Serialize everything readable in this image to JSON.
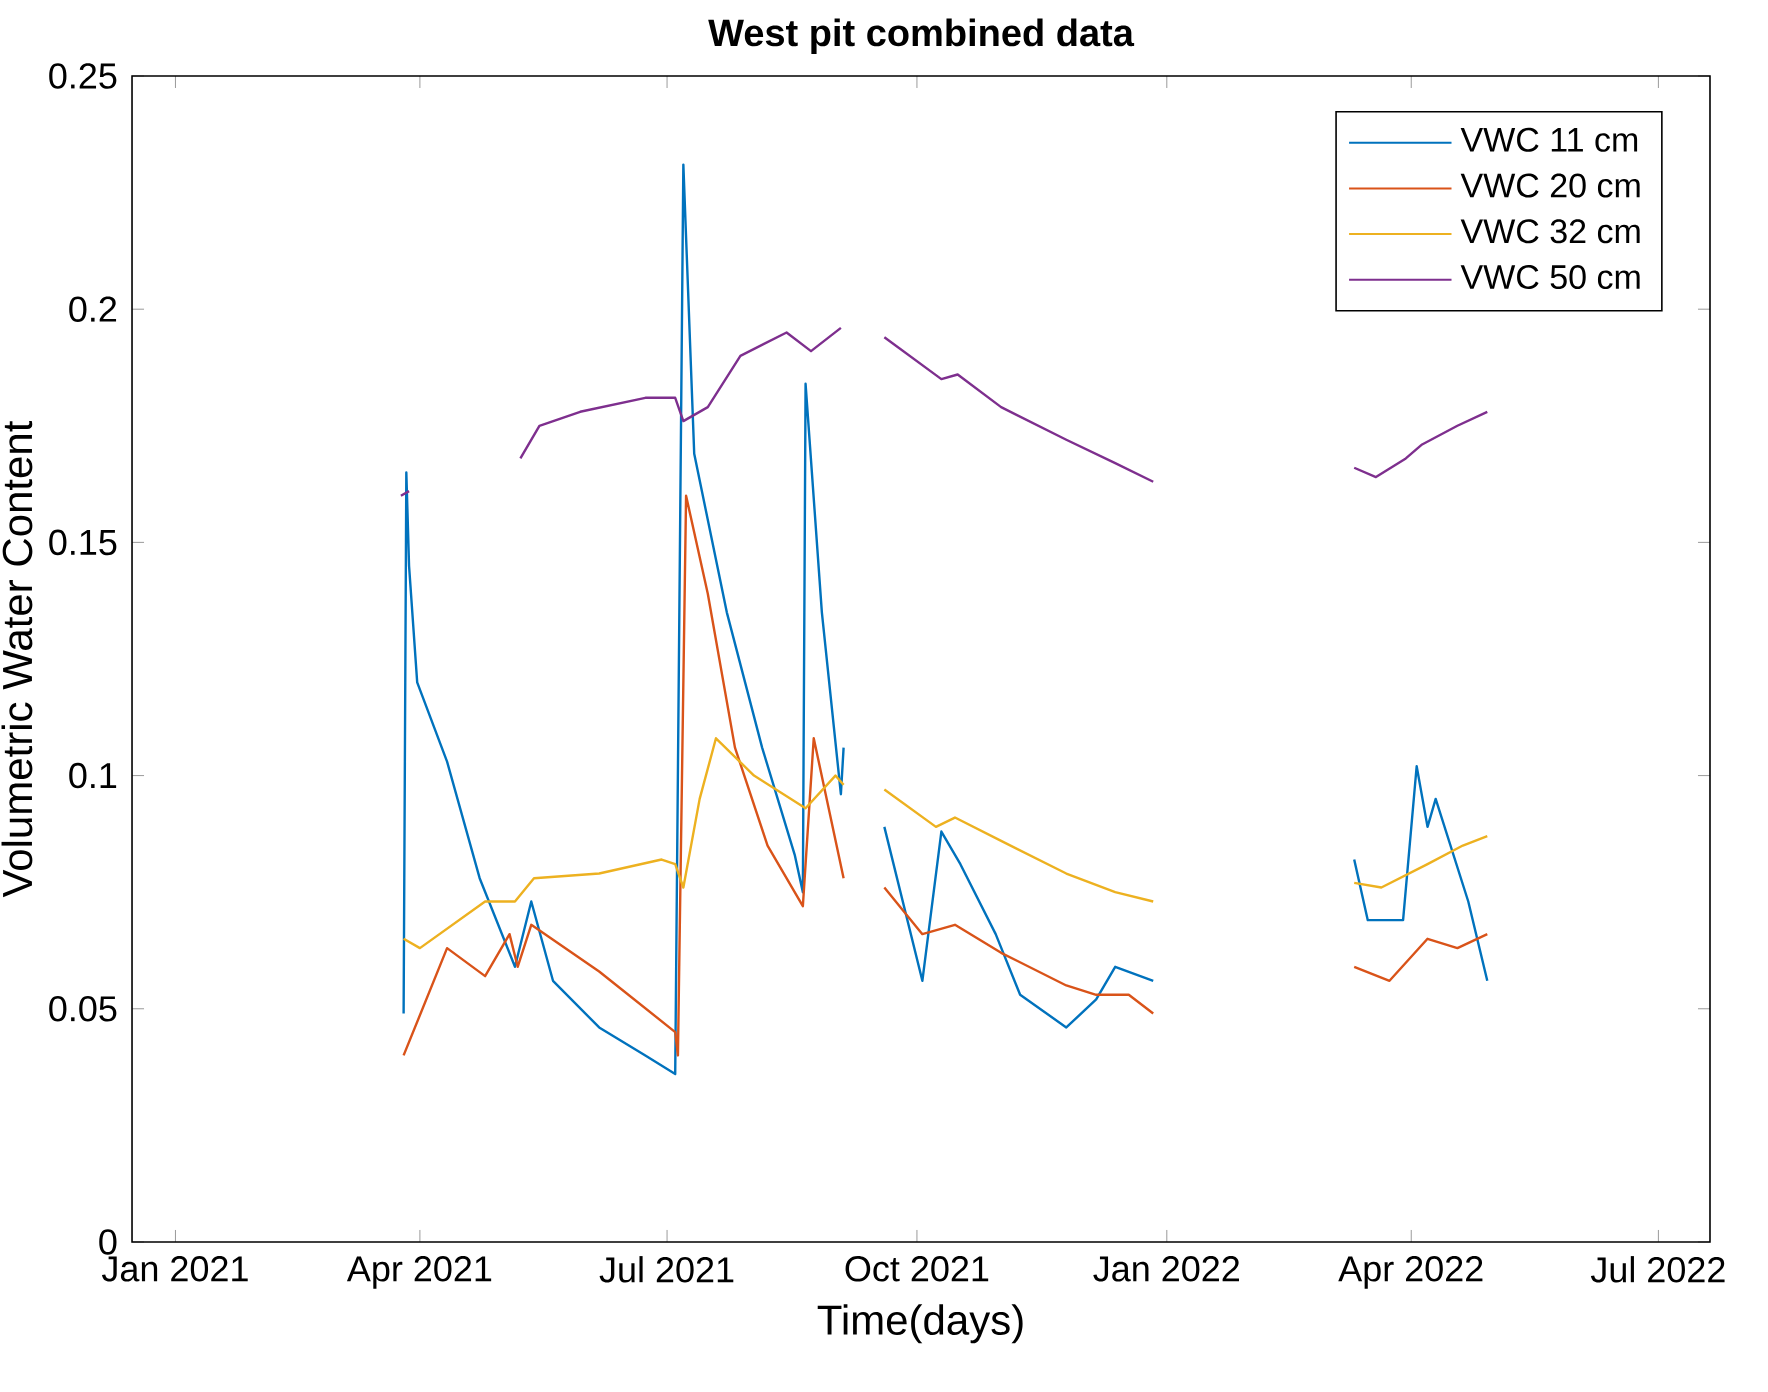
{
  "chart_data": {
    "type": "line",
    "title": "West pit combined data",
    "xlabel": "Time(days)",
    "ylabel": "Volumetric Water Content",
    "xlim": [
      "2020-12-16",
      "2022-07-20"
    ],
    "xticks": [
      {
        "value": "2021-01-01",
        "label": "Jan 2021"
      },
      {
        "value": "2021-04-01",
        "label": "Apr 2021"
      },
      {
        "value": "2021-07-01",
        "label": "Jul 2021"
      },
      {
        "value": "2021-10-01",
        "label": "Oct 2021"
      },
      {
        "value": "2022-01-01",
        "label": "Jan 2022"
      },
      {
        "value": "2022-04-01",
        "label": "Apr 2022"
      },
      {
        "value": "2022-07-01",
        "label": "Jul 2022"
      }
    ],
    "ylim": [
      0,
      0.25
    ],
    "yticks": [
      0,
      0.05,
      0.1,
      0.15,
      0.2,
      0.25
    ],
    "legend": "top right",
    "grid": false,
    "marker": "none",
    "line_style": "solid",
    "series": [
      {
        "name": "VWC 11 cm",
        "color": "#0072bd",
        "x": [
          "2021-03-26",
          "2021-03-27",
          "2021-03-28",
          "2021-03-31",
          "2021-04-11",
          "2021-04-23",
          "2021-05-06",
          "2021-05-12",
          "2021-05-20",
          "2021-06-06",
          "2021-06-23",
          "2021-07-04",
          "2021-07-07",
          "2021-07-11",
          "2021-07-23",
          "2021-08-05",
          "2021-08-17",
          "2021-08-20",
          "2021-08-21",
          "2021-08-27",
          "2021-09-03",
          "2021-09-04",
          "2021-09-12",
          "2021-09-19",
          "2021-10-03",
          "2021-10-10",
          "2021-10-17",
          "2021-10-30",
          "2021-11-08",
          "2021-11-25",
          "2021-12-06",
          "2021-12-13",
          "2021-12-27",
          "2022-02-01",
          "2022-03-11",
          "2022-03-16",
          "2022-03-29",
          "2022-04-03",
          "2022-04-07",
          "2022-04-10",
          "2022-04-22",
          "2022-04-29"
        ],
        "values": [
          0.049,
          0.165,
          0.145,
          0.12,
          0.103,
          0.078,
          0.059,
          0.073,
          0.056,
          0.046,
          0.04,
          0.036,
          0.231,
          0.169,
          0.135,
          0.106,
          0.083,
          0.075,
          0.184,
          0.135,
          0.096,
          0.106,
          null,
          0.089,
          0.056,
          0.088,
          0.081,
          0.066,
          0.053,
          0.046,
          0.052,
          0.059,
          0.056,
          null,
          0.082,
          0.069,
          0.069,
          0.102,
          0.089,
          0.095,
          0.073,
          0.056
        ]
      },
      {
        "name": "VWC 20 cm",
        "color": "#d95319",
        "x": [
          "2021-03-26",
          "2021-04-11",
          "2021-04-25",
          "2021-05-04",
          "2021-05-07",
          "2021-05-12",
          "2021-06-06",
          "2021-07-04",
          "2021-07-05",
          "2021-07-08",
          "2021-07-16",
          "2021-07-26",
          "2021-08-07",
          "2021-08-20",
          "2021-08-24",
          "2021-09-04",
          "2021-09-12",
          "2021-09-19",
          "2021-10-03",
          "2021-10-15",
          "2021-11-01",
          "2021-11-25",
          "2021-12-06",
          "2021-12-18",
          "2021-12-27",
          "2022-02-01",
          "2022-03-11",
          "2022-03-24",
          "2022-04-07",
          "2022-04-18",
          "2022-04-29"
        ],
        "values": [
          0.04,
          0.063,
          0.057,
          0.066,
          0.059,
          0.068,
          0.058,
          0.045,
          0.04,
          0.16,
          0.139,
          0.106,
          0.085,
          0.072,
          0.108,
          0.078,
          null,
          0.076,
          0.066,
          0.068,
          0.062,
          0.055,
          0.053,
          0.053,
          0.049,
          null,
          0.059,
          0.056,
          0.065,
          0.063,
          0.066
        ]
      },
      {
        "name": "VWC 32 cm",
        "color": "#edb120",
        "x": [
          "2021-03-26",
          "2021-04-01",
          "2021-04-25",
          "2021-05-06",
          "2021-05-13",
          "2021-06-06",
          "2021-06-29",
          "2021-07-04",
          "2021-07-07",
          "2021-07-13",
          "2021-07-19",
          "2021-08-02",
          "2021-08-21",
          "2021-09-01",
          "2021-09-04",
          "2021-09-12",
          "2021-09-19",
          "2021-10-08",
          "2021-10-15",
          "2021-11-01",
          "2021-11-25",
          "2021-12-13",
          "2021-12-27",
          "2022-02-01",
          "2022-03-11",
          "2022-03-21",
          "2022-04-07",
          "2022-04-20",
          "2022-04-29"
        ],
        "values": [
          0.065,
          0.063,
          0.073,
          0.073,
          0.078,
          0.079,
          0.082,
          0.081,
          0.076,
          0.095,
          0.108,
          0.1,
          0.093,
          0.1,
          0.098,
          null,
          0.097,
          0.089,
          0.091,
          0.086,
          0.079,
          0.075,
          0.073,
          null,
          0.077,
          0.076,
          0.081,
          0.085,
          0.087
        ]
      },
      {
        "name": "VWC 50 cm",
        "color": "#7e2f8e",
        "x": [
          "2021-03-25",
          "2021-03-28",
          "2021-04-20",
          "2021-05-08",
          "2021-05-15",
          "2021-05-30",
          "2021-06-23",
          "2021-07-04",
          "2021-07-07",
          "2021-07-16",
          "2021-07-28",
          "2021-08-14",
          "2021-08-23",
          "2021-09-03",
          "2021-09-12",
          "2021-09-19",
          "2021-10-10",
          "2021-10-16",
          "2021-11-01",
          "2021-11-25",
          "2021-12-13",
          "2021-12-27",
          "2022-02-01",
          "2022-03-11",
          "2022-03-19",
          "2022-03-30",
          "2022-04-05",
          "2022-04-18",
          "2022-04-29"
        ],
        "values": [
          0.16,
          0.161,
          null,
          0.168,
          0.175,
          0.178,
          0.181,
          0.181,
          0.176,
          0.179,
          0.19,
          0.195,
          0.191,
          0.196,
          null,
          0.194,
          0.185,
          0.186,
          0.179,
          0.172,
          0.167,
          0.163,
          null,
          0.166,
          0.164,
          0.168,
          0.171,
          0.175,
          0.178
        ]
      }
    ]
  }
}
